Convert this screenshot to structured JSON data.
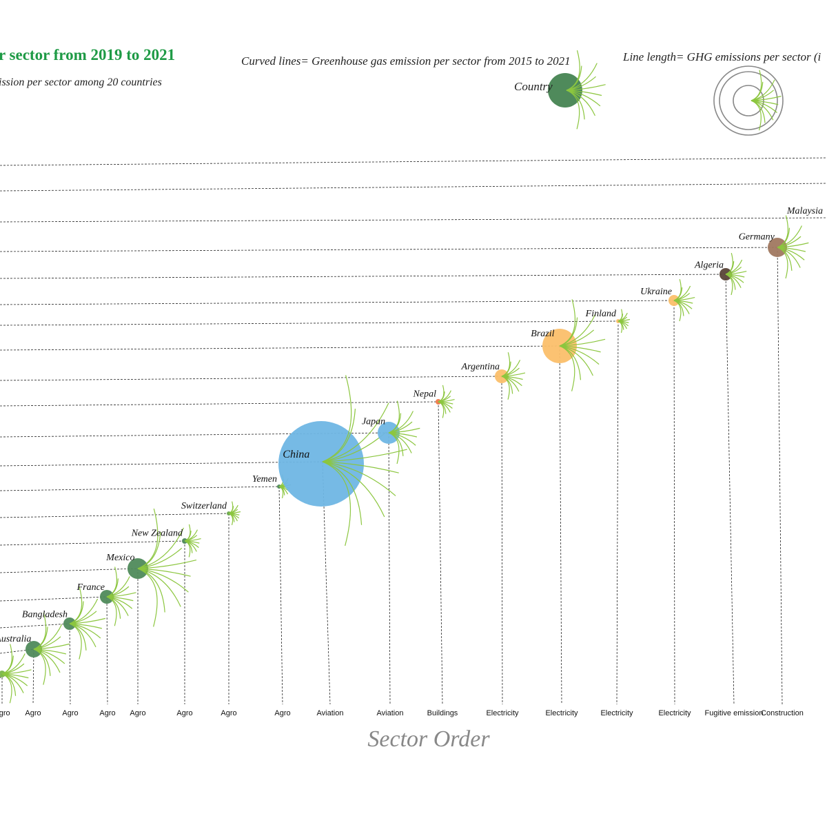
{
  "chart_data": {
    "type": "scatter",
    "title": "r sector from 2019 to 2021",
    "subtitle": "ission per sector among 20 countries",
    "xlabel": "Sector Order",
    "legend": {
      "curved_lines": "Curved lines= Greenhouse gas emission per sector from 2015 to 2021",
      "country": "Country",
      "line_length": "Line length= GHG emissions per sector (i"
    },
    "colors": {
      "title": "#1e9a45",
      "tendril": "#8cc63f",
      "agro": "#4f8a5b",
      "aviation": "#6fb6e4",
      "buildings": "#f07a4a",
      "electricity": "#fbbf6a",
      "fugitive": "#5a4438",
      "construction": "#a07860"
    },
    "points": [
      {
        "country": "",
        "sector": "Agro",
        "color": "#7ab648"
      },
      {
        "country": "Australia",
        "sector": "Agro",
        "color": "#4f8a5b"
      },
      {
        "country": "Bangladesh",
        "sector": "Agro",
        "color": "#4f8a5b"
      },
      {
        "country": "France",
        "sector": "Agro",
        "color": "#4f8a5b"
      },
      {
        "country": "Mexico",
        "sector": "Agro",
        "color": "#4f8a5b"
      },
      {
        "country": "New Zealand",
        "sector": "Agro",
        "color": "#4f8a5b"
      },
      {
        "country": "Switzerland",
        "sector": "Agro",
        "color": "#6aa84f"
      },
      {
        "country": "Yemen",
        "sector": "Agro",
        "color": "#4f8a5b"
      },
      {
        "country": "China",
        "sector": "Aviation",
        "color": "#6fb6e4"
      },
      {
        "country": "Japan",
        "sector": "Aviation",
        "color": "#6fb6e4"
      },
      {
        "country": "Nepal",
        "sector": "Buildings",
        "color": "#f07a4a"
      },
      {
        "country": "Argentina",
        "sector": "Electricity",
        "color": "#fbbf6a"
      },
      {
        "country": "Brazil",
        "sector": "Electricity",
        "color": "#fbbf6a"
      },
      {
        "country": "Finland",
        "sector": "Electricity",
        "color": "#fbbf6a"
      },
      {
        "country": "Ukraine",
        "sector": "Electricity",
        "color": "#fbbf6a"
      },
      {
        "country": "Algeria",
        "sector": "Fugitive emission",
        "color": "#5a4438"
      },
      {
        "country": "Germany",
        "sector": "Construction",
        "color": "#a07860"
      },
      {
        "country": "Malaysia",
        "sector": "",
        "color": ""
      }
    ]
  }
}
